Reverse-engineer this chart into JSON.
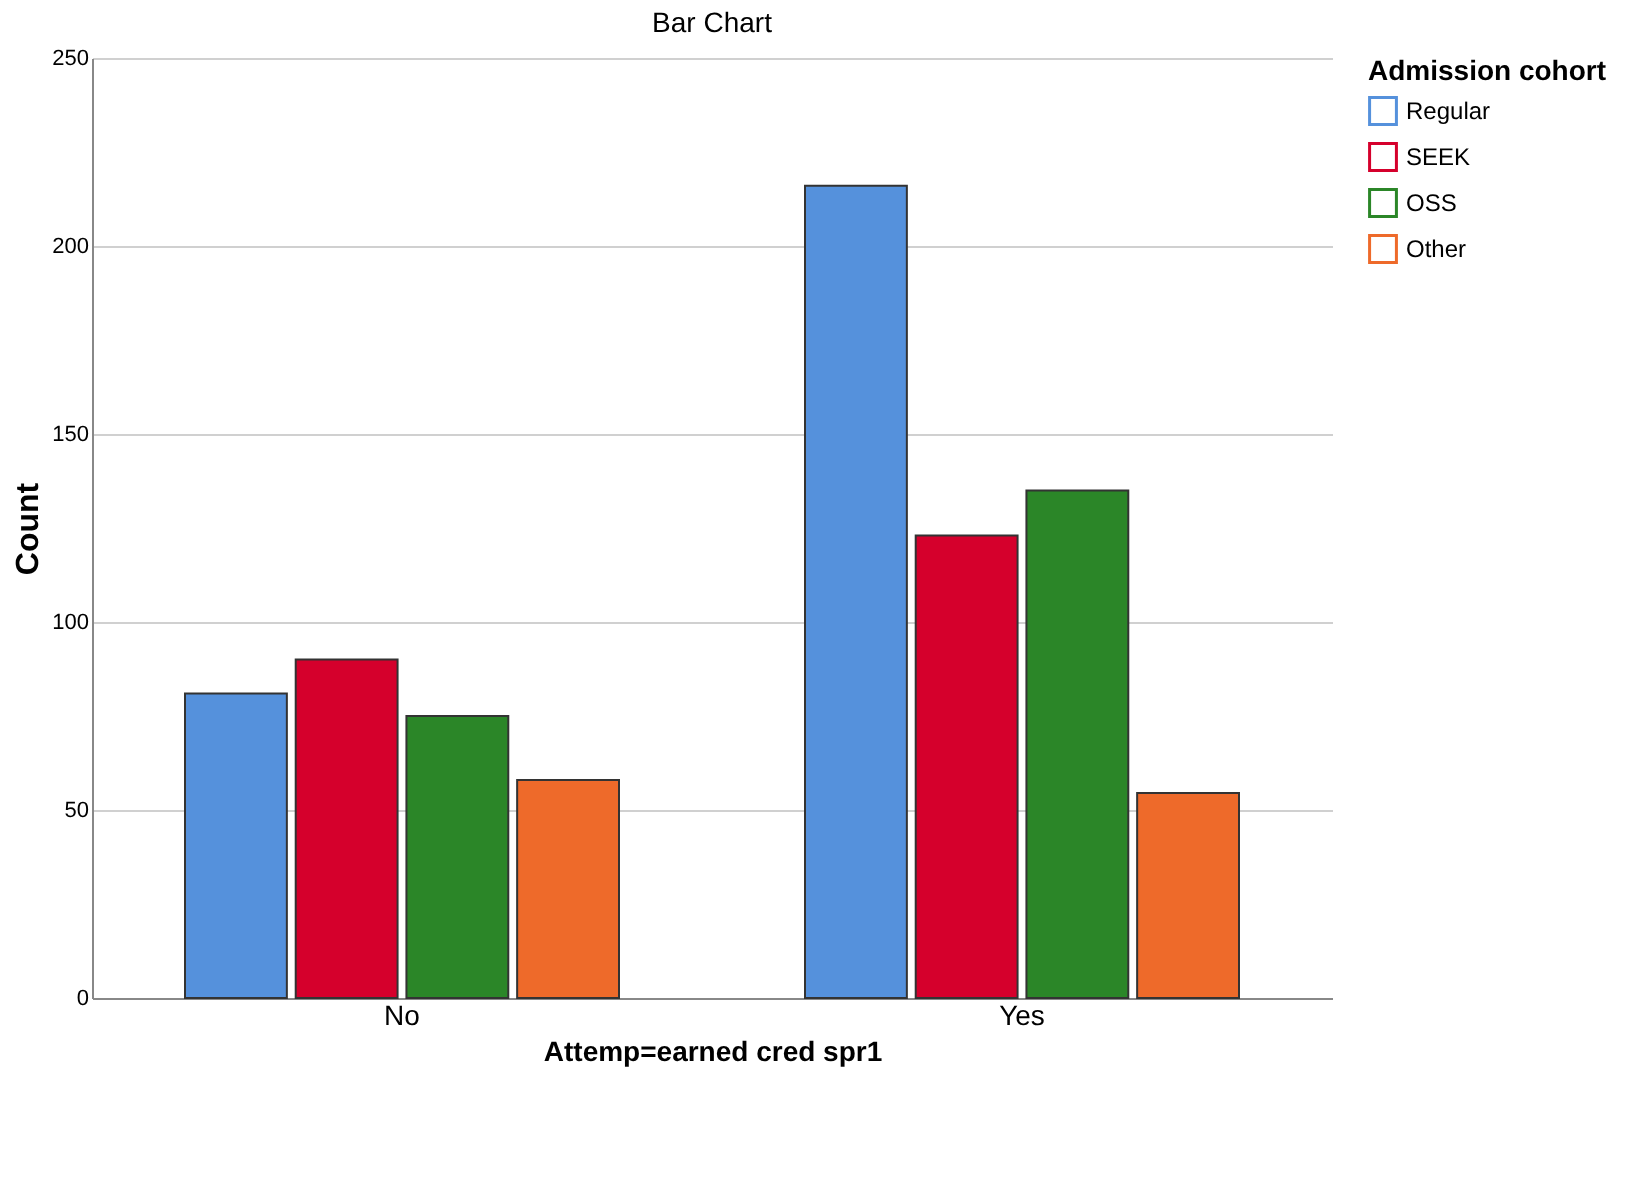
{
  "chart_data": {
    "type": "bar",
    "title": "Bar Chart",
    "xlabel": "Attemp=earned cred spr1",
    "ylabel": "Count",
    "legend_title": "Admission cohort",
    "categories": [
      "No",
      "Yes"
    ],
    "series": [
      {
        "name": "Regular",
        "color": "#5591dc",
        "values": [
          81,
          216
        ]
      },
      {
        "name": "SEEK",
        "color": "#d5002c",
        "values": [
          90,
          123
        ]
      },
      {
        "name": "OSS",
        "color": "#2b8628",
        "values": [
          75,
          135
        ]
      },
      {
        "name": "Other",
        "color": "#ee6a2a",
        "values": [
          58,
          54.5
        ]
      }
    ],
    "ylim": [
      0,
      250
    ],
    "yticks": [
      0,
      50,
      100,
      150,
      200,
      250
    ],
    "grid": "y",
    "legend": "top right"
  }
}
